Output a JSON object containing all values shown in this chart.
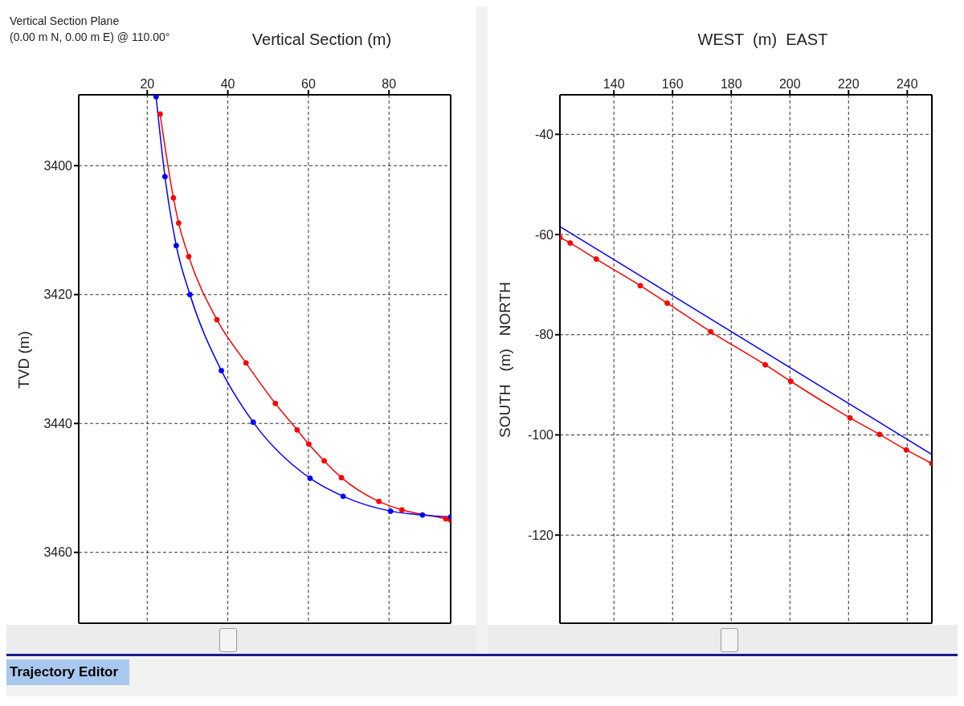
{
  "chart_data": [
    {
      "type": "line",
      "xlabel": "Vertical Section (m)",
      "ylabel": "TVD (m)",
      "annotations": [
        "Vertical Section Plane",
        "(0.00 m N, 0.00 m E) @ 110.00°",
        "Trajectory Editor"
      ],
      "xlim": [
        3,
        95.3
      ],
      "xticks": [
        20,
        40,
        60,
        80
      ],
      "ylim": [
        3471,
        3389
      ],
      "yticks": [
        3400,
        3420,
        3440,
        3460
      ],
      "grid": true,
      "line_style": "solid",
      "series": [
        {
          "color": "#ff0000",
          "marker": "circle",
          "x": [
            23.2,
            26.5,
            27.8,
            30.3,
            37.3,
            44.5,
            51.8,
            57.2,
            60.1,
            63.9,
            68.2,
            77.5,
            83.2,
            94.1,
            95.3
          ],
          "values": [
            3392.0,
            3405.0,
            3408.9,
            3414.1,
            3423.9,
            3430.6,
            3436.9,
            3441.0,
            3443.2,
            3445.8,
            3448.4,
            3452.1,
            3453.4,
            3454.8,
            3455.0
          ]
        },
        {
          "color": "#0000ff",
          "marker": "circle",
          "x": [
            22.2,
            24.4,
            27.2,
            30.6,
            38.4,
            46.3,
            60.4,
            68.6,
            80.4,
            88.3,
            95.3
          ],
          "values": [
            3389.3,
            3401.7,
            3412.4,
            3420.0,
            3431.8,
            3439.8,
            3448.5,
            3451.3,
            3453.6,
            3454.2,
            3454.5
          ]
        }
      ]
    },
    {
      "type": "line",
      "xlabel": "WEST  (m)  EAST",
      "ylabel": "SOUTH   (m)   NORTH",
      "xlim": [
        121.6,
        248.4
      ],
      "xticks": [
        140,
        160,
        180,
        200,
        220,
        240
      ],
      "ylim": [
        -137.6,
        -32.1
      ],
      "yticks": [
        -120,
        -100,
        -80,
        -60,
        -40
      ],
      "grid": true,
      "line_style": "solid",
      "series": [
        {
          "color": "#0000ff",
          "marker": "none",
          "x": [
            121.6,
            248.4
          ],
          "values": [
            -58.4,
            -103.9
          ]
        },
        {
          "color": "#ff0000",
          "marker": "circle",
          "x": [
            121.6,
            125.1,
            134.0,
            149.0,
            158.2,
            173.0,
            191.6,
            200.3,
            220.5,
            230.6,
            239.7,
            248.4
          ],
          "values": [
            -60.6,
            -61.7,
            -64.9,
            -70.2,
            -73.7,
            -79.4,
            -86.0,
            -89.3,
            -96.6,
            -99.9,
            -103.0,
            -105.7
          ]
        }
      ]
    }
  ]
}
